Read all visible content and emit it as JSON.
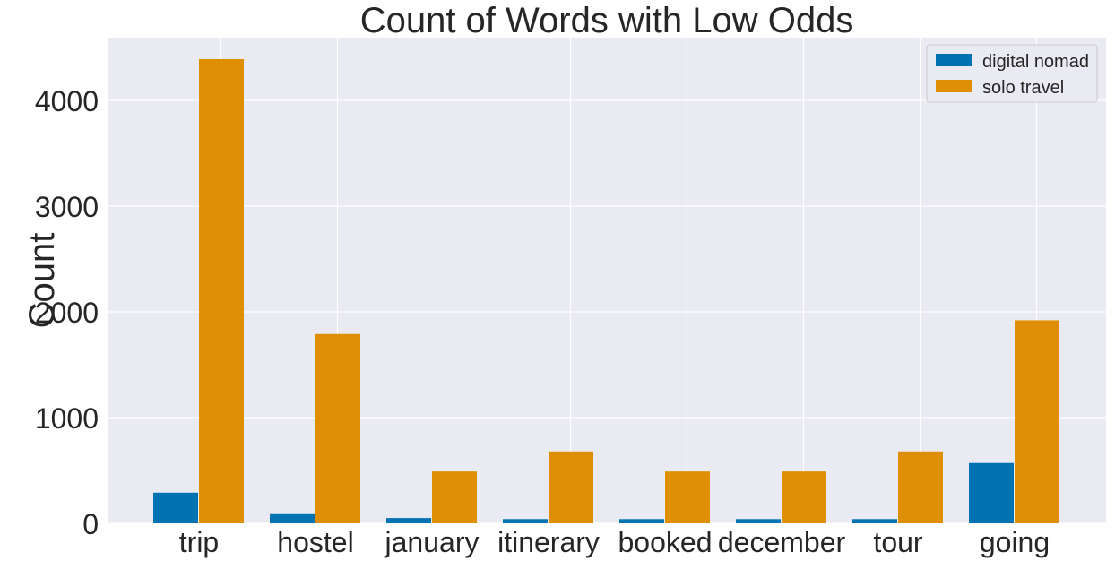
{
  "chart_data": {
    "type": "bar",
    "title": "Count of Words with Low Odds",
    "xlabel": "",
    "ylabel": "Count",
    "categories": [
      "trip",
      "hostel",
      "january",
      "itinerary",
      "booked",
      "december",
      "tour",
      "going"
    ],
    "series": [
      {
        "name": "digital nomad",
        "color": "#0173b2",
        "values": [
          290,
          95,
          50,
          40,
          40,
          40,
          40,
          570
        ]
      },
      {
        "name": "solo travel",
        "color": "#de8f05",
        "values": [
          4390,
          1790,
          490,
          680,
          490,
          490,
          680,
          1920
        ]
      }
    ],
    "yticks": [
      0,
      1000,
      2000,
      3000,
      4000
    ],
    "ylim": [
      0,
      4600
    ],
    "grid": true,
    "legend_position": "top-right",
    "background_color": "#eaeaf2",
    "grid_color": "#ffffff"
  }
}
